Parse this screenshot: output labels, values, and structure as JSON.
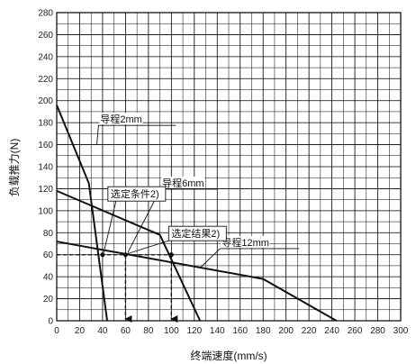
{
  "chart_data": {
    "type": "line",
    "title": "",
    "xlabel": "终端速度(mm/s)",
    "ylabel": "负载推力(N)",
    "xlim": [
      0,
      300
    ],
    "ylim": [
      0,
      280
    ],
    "x_ticks": [
      0,
      20,
      40,
      60,
      80,
      100,
      120,
      140,
      160,
      180,
      200,
      220,
      240,
      260,
      280,
      300
    ],
    "y_ticks": [
      0,
      20,
      40,
      60,
      80,
      100,
      120,
      140,
      160,
      180,
      200,
      220,
      240,
      260,
      280
    ],
    "grid": true,
    "series": [
      {
        "name": "导程2mm",
        "x": [
          0,
          28,
          44
        ],
        "y": [
          196,
          125,
          0
        ]
      },
      {
        "name": "导程6mm",
        "x": [
          0,
          90,
          125
        ],
        "y": [
          118,
          78,
          0
        ]
      },
      {
        "name": "导程12mm",
        "x": [
          0,
          180,
          244
        ],
        "y": [
          72,
          38,
          0
        ]
      }
    ],
    "annotations": [
      {
        "text": "导程2mm",
        "x": 38,
        "y": 180
      },
      {
        "text": "导程6mm",
        "x": 92,
        "y": 122
      },
      {
        "text": "导程12mm",
        "x": 144,
        "y": 68
      },
      {
        "text": "选定条件2)",
        "x": 47,
        "y": 112
      },
      {
        "text": "选定结果2)",
        "x": 100,
        "y": 76
      }
    ],
    "reference": {
      "load": 60,
      "points": [
        {
          "x": 40,
          "y": 60
        },
        {
          "x": 60,
          "y": 60
        },
        {
          "x": 100,
          "y": 60
        }
      ]
    }
  }
}
